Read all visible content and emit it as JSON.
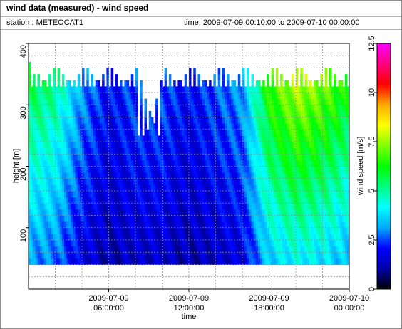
{
  "header": {
    "title": "wind data (measured) - wind speed",
    "station": "station : METEOCAT1",
    "time_range": "time: 2009-07-09 00:10:00 to 2009-07-10 00:00:00"
  },
  "chart_data": {
    "type": "heatmap",
    "title": "wind data (measured) - wind speed",
    "xlabel": "time",
    "ylabel": "height [m]",
    "colorbar_label": "wind speed [m/s]",
    "xlim": [
      "2009-07-09 00:00:00",
      "2009-07-10 00:00:00"
    ],
    "ylim": [
      0,
      400
    ],
    "clim": [
      0,
      12.5
    ],
    "x_ticks": [
      {
        "value": "2009-07-09 06:00:00",
        "label_date": "2009-07-09",
        "label_time": "06:00:00"
      },
      {
        "value": "2009-07-09 12:00:00",
        "label_date": "2009-07-09",
        "label_time": "12:00:00"
      },
      {
        "value": "2009-07-09 18:00:00",
        "label_date": "2009-07-09",
        "label_time": "18:00:00"
      },
      {
        "value": "2009-07-10 00:00:00",
        "label_date": "2009-07-10",
        "label_time": "00:00:00"
      }
    ],
    "y_ticks": [
      100,
      200,
      300,
      400
    ],
    "y_minor_gridlines": [
      20,
      40,
      60,
      80,
      120,
      140,
      160,
      180,
      220,
      240,
      260,
      280,
      320,
      340,
      360,
      380
    ],
    "colorbar_ticks": [
      0,
      2.5,
      5,
      7.5,
      10,
      12.5
    ],
    "colormap": [
      "#000000",
      "#0000aa",
      "#0000ff",
      "#00aaff",
      "#00ffff",
      "#00ff80",
      "#00ff00",
      "#80ff00",
      "#ffff00",
      "#ffaa00",
      "#ff0000",
      "#ff0080",
      "#ff00ff"
    ],
    "height_range_m": [
      40,
      370
    ],
    "grid": true,
    "periods_hours": [
      0,
      2,
      4,
      6,
      8,
      10,
      12,
      14,
      16,
      18,
      20,
      22,
      24
    ],
    "wind_speed_profile_m_s": [
      5.5,
      5.0,
      3.0,
      2.0,
      2.5,
      2.5,
      2.0,
      2.5,
      3.0,
      6.5,
      7.5,
      7.0,
      6.0
    ]
  }
}
